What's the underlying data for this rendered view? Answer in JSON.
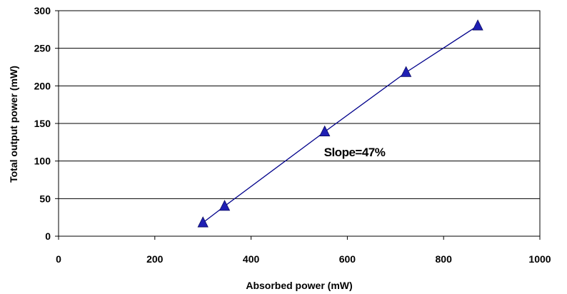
{
  "chart_data": {
    "type": "line",
    "title": "",
    "xlabel": "Absorbed power (mW)",
    "ylabel": "Total output power (mW)",
    "xlim": [
      0,
      1000
    ],
    "ylim": [
      0,
      300
    ],
    "xticks": [
      0,
      200,
      400,
      600,
      800,
      1000
    ],
    "yticks": [
      0,
      50,
      100,
      150,
      200,
      250,
      300
    ],
    "grid": "horizontal",
    "series": [
      {
        "marker": "triangle",
        "color": "#00008b",
        "markerColor": "#1f1fb4",
        "x": [
          300,
          345,
          553,
          722,
          871
        ],
        "y": [
          18,
          40,
          139,
          218,
          280
        ]
      }
    ],
    "annotations": [
      {
        "text": "Slope=47%",
        "x": 615,
        "y": 112
      }
    ]
  }
}
